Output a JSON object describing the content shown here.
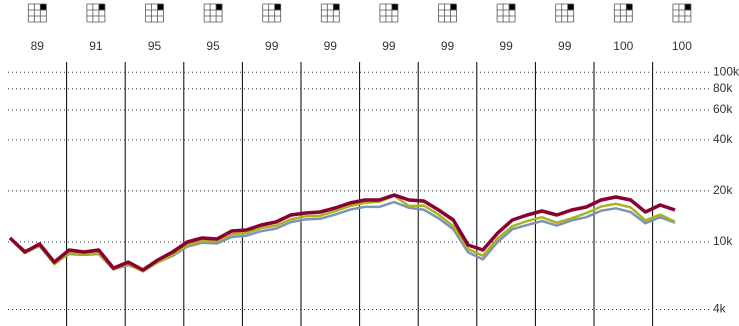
{
  "chart_data": {
    "type": "line",
    "column_scores": [
      89,
      91,
      95,
      95,
      99,
      99,
      99,
      99,
      99,
      99,
      100,
      100
    ],
    "ylim": [
      3200,
      115000
    ],
    "log_scale": true,
    "yticks": [
      {
        "value": 4000,
        "label": "4k"
      },
      {
        "value": 10000,
        "label": "10k"
      },
      {
        "value": 20000,
        "label": "20k"
      },
      {
        "value": 40000,
        "label": "40k"
      },
      {
        "value": 60000,
        "label": "60k"
      },
      {
        "value": 80000,
        "label": "80k"
      },
      {
        "value": 100000,
        "label": "100k"
      }
    ],
    "grid": true,
    "series": [
      {
        "color": "#7f93b8",
        "values": [
          10560,
          8900,
          9400,
          7500,
          8500,
          8400,
          8500,
          6900,
          7300,
          6800,
          7600,
          8300,
          9400,
          9900,
          9800,
          10700,
          10900,
          11600,
          12000,
          13100,
          13600,
          13700,
          14500,
          15500,
          16100,
          16100,
          17200,
          15900,
          15500,
          13800,
          11900,
          8700,
          7900,
          10000,
          11900,
          12600,
          13300,
          12500,
          13400,
          14000,
          15300,
          15800,
          15000,
          12900,
          14000,
          13000
        ]
      },
      {
        "color": "#a8b41e",
        "values": [
          10560,
          8600,
          9500,
          7400,
          8600,
          8500,
          8600,
          6900,
          7400,
          6700,
          7600,
          8400,
          9600,
          10100,
          10100,
          11100,
          11300,
          12100,
          12500,
          13600,
          14200,
          14300,
          15200,
          16300,
          17000,
          17300,
          18700,
          16300,
          16400,
          14500,
          12400,
          9100,
          8300,
          10500,
          12400,
          13300,
          14000,
          13000,
          13800,
          14800,
          16200,
          16800,
          16000,
          13400,
          14500,
          13200
        ]
      },
      {
        "color": "#8b0033",
        "values": [
          10560,
          8730,
          9730,
          7620,
          8970,
          8730,
          8970,
          7020,
          7620,
          6840,
          7830,
          8730,
          10000,
          10560,
          10420,
          11610,
          11770,
          12600,
          13120,
          14430,
          14830,
          15030,
          15870,
          16980,
          17690,
          17690,
          18930,
          17690,
          17450,
          15440,
          13480,
          9600,
          8970,
          11300,
          13480,
          14430,
          15230,
          14430,
          15440,
          16090,
          17690,
          18420,
          17690,
          15030,
          16530,
          15440
        ]
      }
    ]
  }
}
